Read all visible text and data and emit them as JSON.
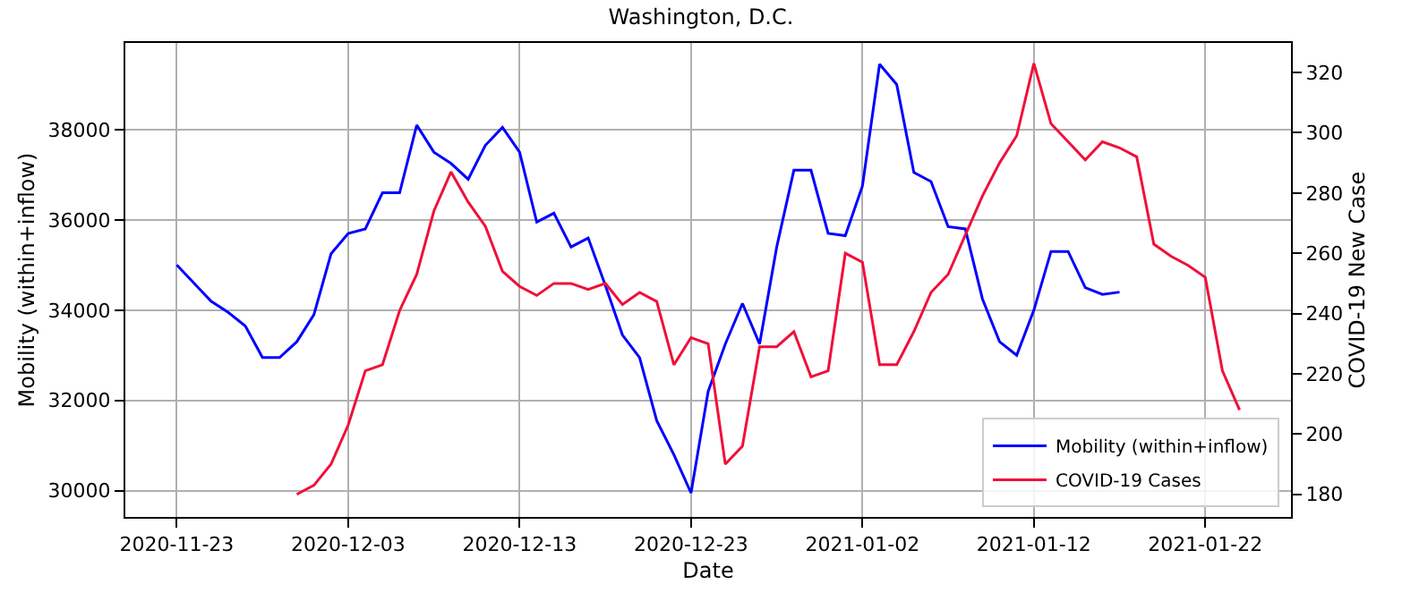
{
  "chart_data": {
    "type": "line",
    "title": "Washington, D.C.",
    "xlabel": "Date",
    "ylabel": "Mobility (within+inflow)",
    "y2label": "COVID-19 New Case",
    "xlim": [
      "2020-11-20",
      "2021-01-27"
    ],
    "xticks": [
      "2020-11-23",
      "2020-12-03",
      "2020-12-13",
      "2020-12-23",
      "2021-01-02",
      "2021-01-12",
      "2021-01-22"
    ],
    "ylim": [
      29420,
      39920
    ],
    "yticks": [
      30000,
      32000,
      34000,
      36000,
      38000
    ],
    "y2lim": [
      172.5,
      329.8
    ],
    "y2ticks": [
      180,
      200,
      220,
      240,
      260,
      280,
      300,
      320
    ],
    "grid": true,
    "legend": "bottom right",
    "line_style": "solid",
    "series": [
      {
        "name": "Mobility (within+inflow)",
        "color": "#0000ff",
        "x": [
          "2020-11-23",
          "2020-11-24",
          "2020-11-25",
          "2020-11-26",
          "2020-11-27",
          "2020-11-28",
          "2020-11-29",
          "2020-11-30",
          "2020-12-01",
          "2020-12-02",
          "2020-12-03",
          "2020-12-04",
          "2020-12-05",
          "2020-12-06",
          "2020-12-07",
          "2020-12-08",
          "2020-12-09",
          "2020-12-10",
          "2020-12-11",
          "2020-12-12",
          "2020-12-13",
          "2020-12-14",
          "2020-12-15",
          "2020-12-16",
          "2020-12-17",
          "2020-12-18",
          "2020-12-19",
          "2020-12-20",
          "2020-12-21",
          "2020-12-22",
          "2020-12-23",
          "2020-12-24",
          "2020-12-25",
          "2020-12-26",
          "2020-12-27",
          "2020-12-28",
          "2020-12-29",
          "2020-12-30",
          "2020-12-31",
          "2021-01-01",
          "2021-01-02",
          "2021-01-03",
          "2021-01-04",
          "2021-01-05",
          "2021-01-06",
          "2021-01-07",
          "2021-01-08",
          "2021-01-09",
          "2021-01-10",
          "2021-01-11",
          "2021-01-12",
          "2021-01-13",
          "2021-01-14",
          "2021-01-15",
          "2021-01-16",
          "2021-01-17"
        ],
        "values": [
          35000,
          34600,
          34200,
          33950,
          33650,
          32950,
          32950,
          33300,
          33900,
          35250,
          35700,
          35800,
          36600,
          36600,
          38100,
          37500,
          37250,
          36900,
          37650,
          38050,
          37500,
          35950,
          36150,
          35400,
          35600,
          34550,
          33450,
          32950,
          31550,
          30800,
          29950,
          32200,
          33250,
          34150,
          33250,
          35400,
          37100,
          37100,
          35700,
          35650,
          36750,
          39450,
          39000,
          37050,
          36850,
          35850,
          35800,
          34250,
          33300,
          33000,
          34000,
          35300,
          35300,
          34500,
          34350,
          34400
        ]
      },
      {
        "name": "COVID-19 Cases",
        "color": "#f0103a",
        "axis": "y2",
        "x": [
          "2020-11-30",
          "2020-12-01",
          "2020-12-02",
          "2020-12-03",
          "2020-12-04",
          "2020-12-05",
          "2020-12-06",
          "2020-12-07",
          "2020-12-08",
          "2020-12-09",
          "2020-12-10",
          "2020-12-11",
          "2020-12-12",
          "2020-12-13",
          "2020-12-14",
          "2020-12-15",
          "2020-12-16",
          "2020-12-17",
          "2020-12-18",
          "2020-12-19",
          "2020-12-20",
          "2020-12-21",
          "2020-12-22",
          "2020-12-23",
          "2020-12-24",
          "2020-12-25",
          "2020-12-26",
          "2020-12-27",
          "2020-12-28",
          "2020-12-29",
          "2020-12-30",
          "2020-12-31",
          "2021-01-01",
          "2021-01-02",
          "2021-01-03",
          "2021-01-04",
          "2021-01-05",
          "2021-01-06",
          "2021-01-07",
          "2021-01-08",
          "2021-01-09",
          "2021-01-10",
          "2021-01-11",
          "2021-01-12",
          "2021-01-13",
          "2021-01-14",
          "2021-01-15",
          "2021-01-16",
          "2021-01-17",
          "2021-01-18",
          "2021-01-19",
          "2021-01-20",
          "2021-01-21",
          "2021-01-22",
          "2021-01-23",
          "2021-01-24"
        ],
        "values": [
          180,
          183,
          190,
          203,
          221,
          223,
          241,
          253,
          274,
          287,
          277,
          269,
          254,
          249,
          246,
          250,
          250,
          248,
          250,
          243,
          247,
          244,
          223,
          232,
          230,
          190,
          196,
          229,
          229,
          234,
          219,
          221,
          260,
          257,
          223,
          223,
          234,
          247,
          253,
          266,
          279,
          290,
          299,
          323,
          303,
          297,
          291,
          297,
          295,
          292,
          263,
          259,
          256,
          252,
          221,
          208
        ]
      }
    ]
  }
}
